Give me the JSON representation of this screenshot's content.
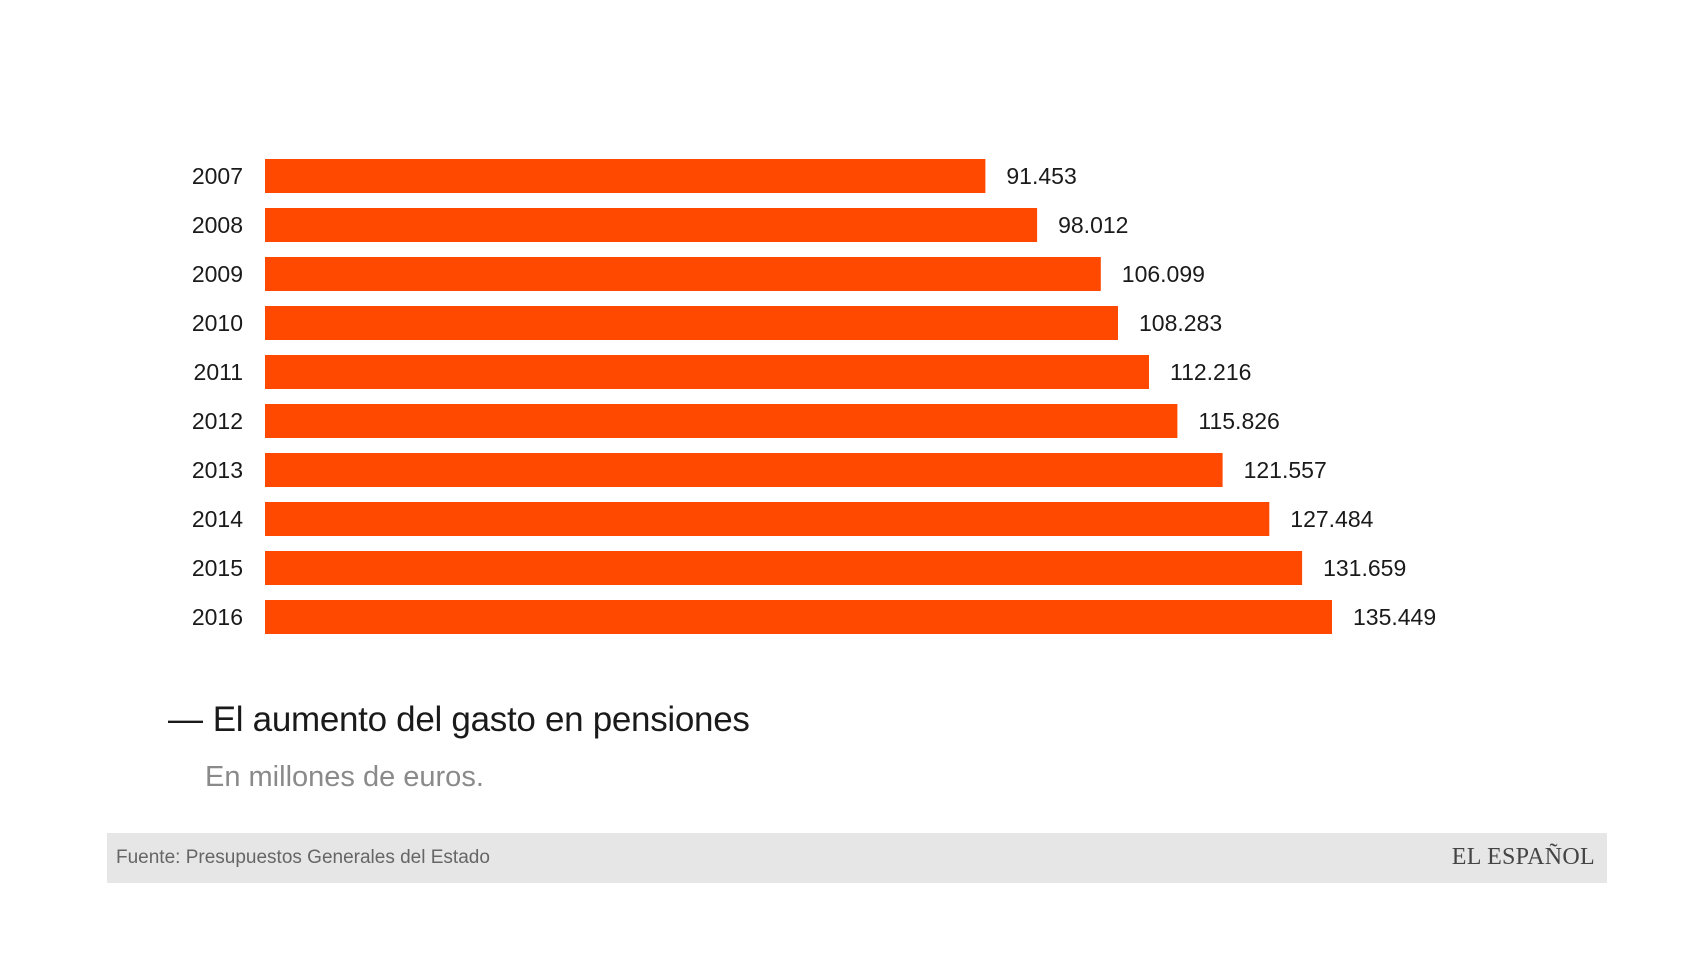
{
  "chart_data": {
    "type": "bar",
    "orientation": "horizontal",
    "title": "El aumento del gasto en pensiones",
    "subtitle": "En millones de euros.",
    "categories": [
      "2007",
      "2008",
      "2009",
      "2010",
      "2011",
      "2012",
      "2013",
      "2014",
      "2015",
      "2016"
    ],
    "values": [
      91453,
      98012,
      106099,
      108283,
      112216,
      115826,
      121557,
      127484,
      131659,
      135449
    ],
    "value_labels": [
      "91.453",
      "98.012",
      "106.099",
      "108.283",
      "112.216",
      "115.826",
      "121.557",
      "127.484",
      "131.659",
      "135.449"
    ],
    "xlabel": "",
    "ylabel": "",
    "xlim": [
      0,
      135449
    ],
    "grid": false,
    "bar_color": "#ff4800"
  },
  "title_dash": "—",
  "footer": {
    "source": "Fuente: Presupuestos Generales del Estado",
    "brand": "EL ESPAÑOL"
  }
}
